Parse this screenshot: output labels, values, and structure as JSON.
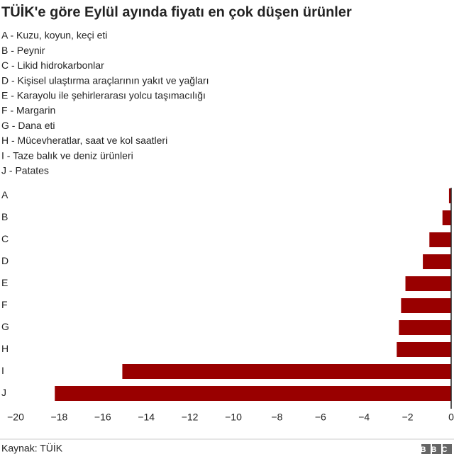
{
  "chart_data": {
    "type": "barh",
    "title": "TÜİK'e göre Eylül ayında fiyatı en çok düşen ürünler",
    "category_key": [
      "A - Kuzu, koyun, keçi eti",
      "B - Peynir",
      "C - Likid hidrokarbonlar",
      "D - Kişisel ulaştırma araçlarının yakıt ve yağları",
      "E - Karayolu ile şehirlerarası yolcu taşımacılığı",
      "F - Margarin",
      "G - Dana eti",
      "H - Mücevheratlar, saat ve kol saatleri",
      "I - Taze balık ve deniz ürünleri",
      "J - Patates"
    ],
    "categories": [
      "A",
      "B",
      "C",
      "D",
      "E",
      "F",
      "G",
      "H",
      "I",
      "J"
    ],
    "values": [
      -0.1,
      -0.4,
      -1.0,
      -1.3,
      -2.1,
      -2.3,
      -2.4,
      -2.5,
      -15.1,
      -18.2
    ],
    "color": "#990000",
    "xlim": [
      -20,
      0
    ],
    "xticks": [
      {
        "value": -20,
        "label": "−20"
      },
      {
        "value": -18,
        "label": "−18"
      },
      {
        "value": -16,
        "label": "−16"
      },
      {
        "value": -14,
        "label": "−14"
      },
      {
        "value": -12,
        "label": "−12"
      },
      {
        "value": -10,
        "label": "−10"
      },
      {
        "value": -8,
        "label": "−8"
      },
      {
        "value": -6,
        "label": "−6"
      },
      {
        "value": -4,
        "label": "−4"
      },
      {
        "value": -2,
        "label": "−2"
      },
      0
    ],
    "grid": false,
    "source": "Kaynak: TÜİK",
    "logo": "BBC"
  }
}
